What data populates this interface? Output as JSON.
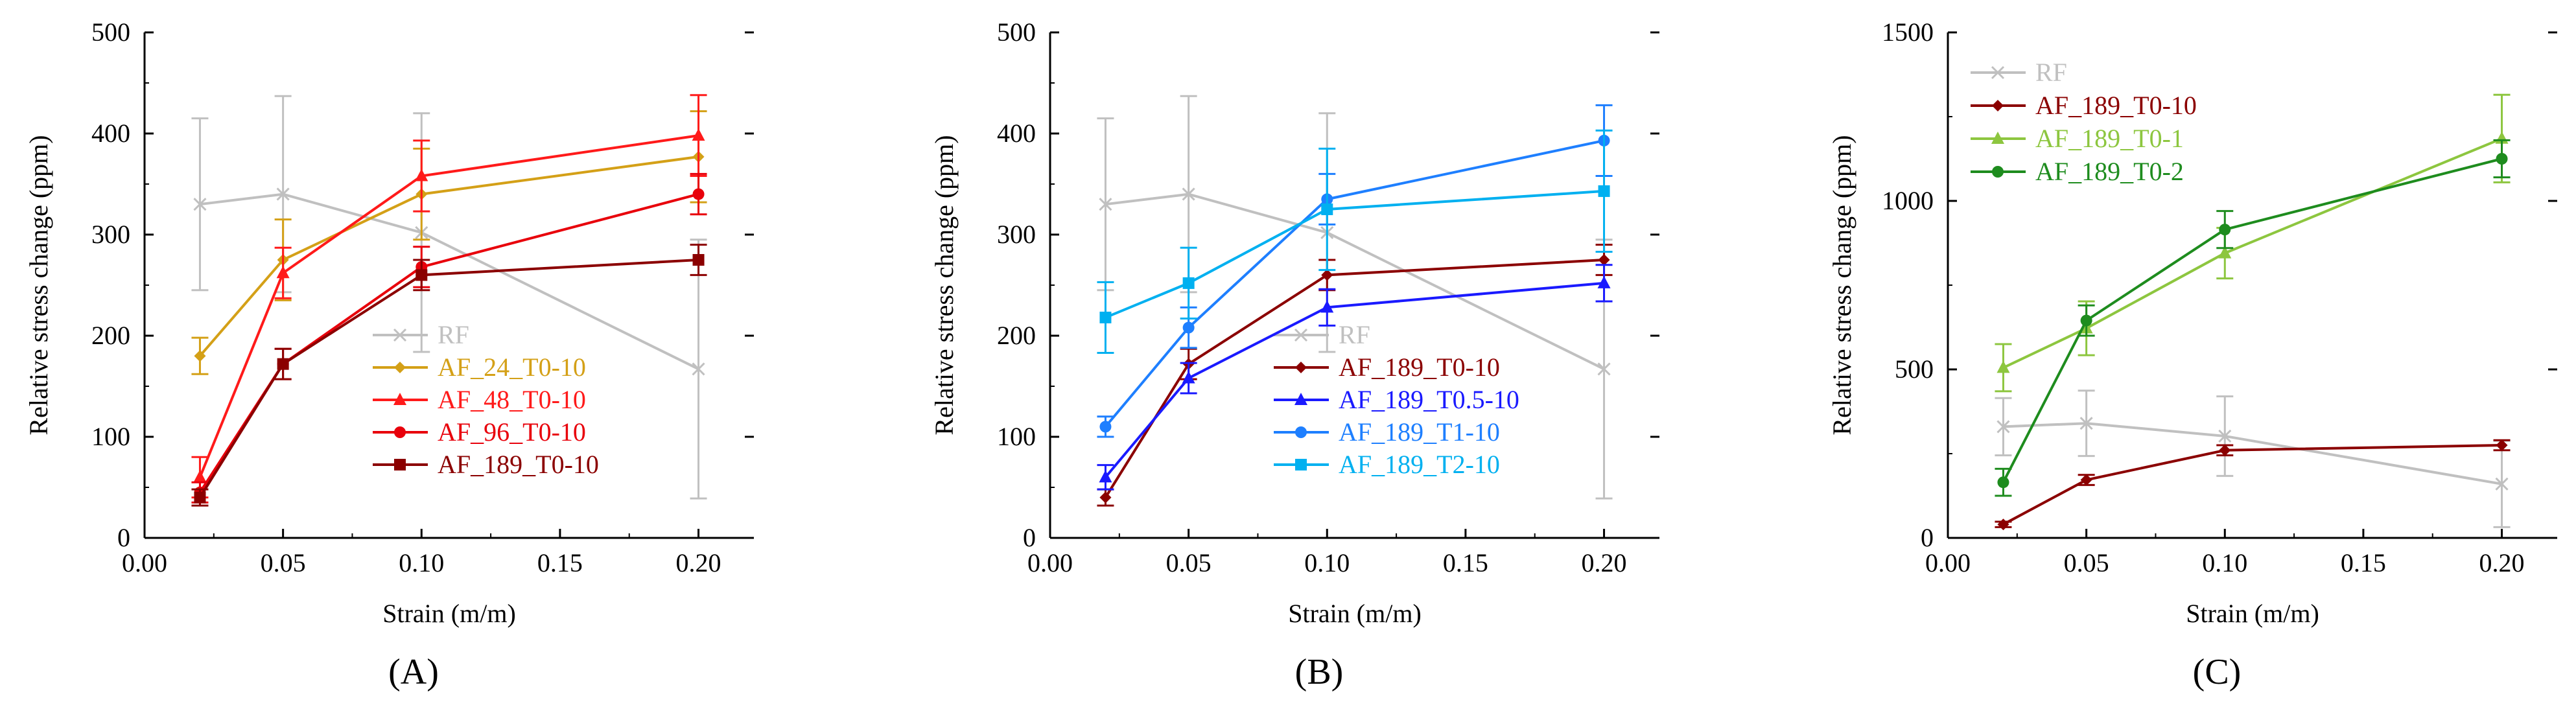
{
  "chart_data": [
    {
      "type": "line",
      "panel_label": "(A)",
      "xlabel": "Strain (m/m)",
      "ylabel": "Relative stress change (ppm)",
      "xlim": [
        0.0,
        0.22
      ],
      "ylim": [
        0,
        500
      ],
      "xticks": [
        0.0,
        0.05,
        0.1,
        0.15,
        0.2
      ],
      "xtick_labels": [
        "0.00",
        "0.05",
        "0.10",
        "0.15",
        "0.20"
      ],
      "yticks": [
        0,
        100,
        200,
        300,
        400,
        500
      ],
      "ytick_labels": [
        "0",
        "100",
        "200",
        "300",
        "400",
        "500"
      ],
      "legend_position": "bottom-right",
      "x": [
        0.02,
        0.05,
        0.1,
        0.2
      ],
      "series": [
        {
          "name": "RF",
          "color": "#c0c0c0",
          "marker": "x",
          "values": [
            330,
            340,
            302,
            167
          ],
          "errors": [
            85,
            97,
            118,
            128
          ]
        },
        {
          "name": "AF_24_T0-10",
          "color": "#d4a017",
          "marker": "diamond",
          "values": [
            180,
            275,
            340,
            377
          ],
          "errors": [
            18,
            40,
            45,
            45
          ]
        },
        {
          "name": "AF_48_T0-10",
          "color": "#ff1a1a",
          "marker": "triangle",
          "values": [
            60,
            262,
            358,
            398
          ],
          "errors": [
            20,
            25,
            35,
            40
          ]
        },
        {
          "name": "AF_96_T0-10",
          "color": "#e8000b",
          "marker": "circle",
          "values": [
            45,
            172,
            268,
            340
          ],
          "errors": [
            10,
            15,
            20,
            20
          ]
        },
        {
          "name": "AF_189_T0-10",
          "color": "#8b0000",
          "marker": "square",
          "values": [
            40,
            172,
            260,
            275
          ],
          "errors": [
            8,
            15,
            15,
            15
          ]
        }
      ]
    },
    {
      "type": "line",
      "panel_label": "(B)",
      "xlabel": "Strain (m/m)",
      "ylabel": "Relative stress change (ppm)",
      "xlim": [
        0.0,
        0.22
      ],
      "ylim": [
        0,
        500
      ],
      "xticks": [
        0.0,
        0.05,
        0.1,
        0.15,
        0.2
      ],
      "xtick_labels": [
        "0.00",
        "0.05",
        "0.10",
        "0.15",
        "0.20"
      ],
      "yticks": [
        0,
        100,
        200,
        300,
        400,
        500
      ],
      "ytick_labels": [
        "0",
        "100",
        "200",
        "300",
        "400",
        "500"
      ],
      "legend_position": "bottom-right",
      "x": [
        0.02,
        0.05,
        0.1,
        0.2
      ],
      "series": [
        {
          "name": "RF",
          "color": "#c0c0c0",
          "marker": "x",
          "values": [
            330,
            340,
            302,
            167
          ],
          "errors": [
            85,
            97,
            118,
            128
          ]
        },
        {
          "name": "AF_189_T0-10",
          "color": "#8b0000",
          "marker": "diamond",
          "values": [
            40,
            172,
            260,
            275
          ],
          "errors": [
            8,
            15,
            15,
            15
          ]
        },
        {
          "name": "AF_189_T0.5-10",
          "color": "#1a1aff",
          "marker": "triangle",
          "values": [
            60,
            158,
            228,
            252
          ],
          "errors": [
            12,
            15,
            18,
            18
          ]
        },
        {
          "name": "AF_189_T1-10",
          "color": "#1e7fff",
          "marker": "circle",
          "values": [
            110,
            208,
            335,
            393
          ],
          "errors": [
            10,
            20,
            25,
            35
          ]
        },
        {
          "name": "AF_189_T2-10",
          "color": "#00b0f0",
          "marker": "square",
          "values": [
            218,
            252,
            325,
            343
          ],
          "errors": [
            35,
            35,
            60,
            60
          ]
        }
      ]
    },
    {
      "type": "line",
      "panel_label": "(C)",
      "xlabel": "Strain (m/m)",
      "ylabel": "Relative stress change (ppm)",
      "xlim": [
        0.0,
        0.22
      ],
      "ylim": [
        0,
        1500
      ],
      "xticks": [
        0.0,
        0.05,
        0.1,
        0.15,
        0.2
      ],
      "xtick_labels": [
        "0.00",
        "0.05",
        "0.10",
        "0.15",
        "0.20"
      ],
      "yticks": [
        0,
        500,
        1000,
        1500
      ],
      "ytick_labels": [
        "0",
        "500",
        "1000",
        "1500"
      ],
      "legend_position": "top-left",
      "x": [
        0.02,
        0.05,
        0.1,
        0.2
      ],
      "series": [
        {
          "name": "RF",
          "color": "#c0c0c0",
          "marker": "x",
          "values": [
            330,
            340,
            302,
            160
          ],
          "errors": [
            85,
            97,
            118,
            128
          ]
        },
        {
          "name": "AF_189_T0-10",
          "color": "#8b0000",
          "marker": "diamond",
          "values": [
            40,
            172,
            260,
            275
          ],
          "errors": [
            8,
            15,
            15,
            15
          ]
        },
        {
          "name": "AF_189_T0-1",
          "color": "#8dc63f",
          "marker": "triangle",
          "values": [
            505,
            622,
            845,
            1185
          ],
          "errors": [
            70,
            80,
            75,
            130
          ]
        },
        {
          "name": "AF_189_T0-2",
          "color": "#1e8c1e",
          "marker": "circle",
          "values": [
            165,
            645,
            915,
            1125
          ],
          "errors": [
            40,
            45,
            55,
            55
          ]
        }
      ]
    }
  ]
}
